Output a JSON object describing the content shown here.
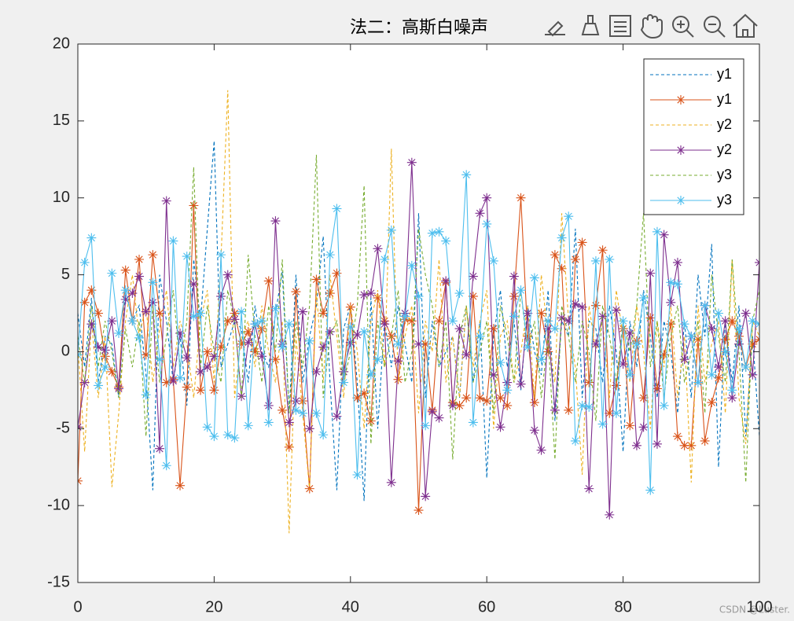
{
  "chart_data": {
    "type": "line",
    "title": "法二：高斯白噪声",
    "watermark": "CSDN @Luster.",
    "x": [
      0,
      1,
      2,
      3,
      4,
      5,
      6,
      7,
      8,
      9,
      10,
      11,
      12,
      13,
      14,
      15,
      16,
      17,
      18,
      19,
      20,
      21,
      22,
      23,
      24,
      25,
      26,
      27,
      28,
      29,
      30,
      31,
      32,
      33,
      34,
      35,
      36,
      37,
      38,
      39,
      40,
      41,
      42,
      43,
      44,
      45,
      46,
      47,
      48,
      49,
      50,
      51,
      52,
      53,
      54,
      55,
      56,
      57,
      58,
      59,
      60,
      61,
      62,
      63,
      64,
      65,
      66,
      67,
      68,
      69,
      70,
      71,
      72,
      73,
      74,
      75,
      76,
      77,
      78,
      79,
      80,
      81,
      82,
      83,
      84,
      85,
      86,
      87,
      88,
      89,
      90,
      91,
      92,
      93,
      94,
      95,
      96,
      97,
      98,
      99,
      100
    ],
    "series": [
      {
        "name": "y1",
        "color": "#0072bd",
        "dashed": true,
        "marker": false,
        "values": [
          2.5,
          -1.0,
          3.5,
          -2.0,
          1.0,
          0.5,
          -3.0,
          4.0,
          2.0,
          3.0,
          -1.5,
          -9.0,
          5.0,
          2.0,
          -2.0,
          1.0,
          -3.5,
          6.0,
          2.0,
          8.0,
          13.7,
          -1.0,
          0.5,
          2.0,
          1.5,
          -2.0,
          3.0,
          0.0,
          -1.0,
          2.5,
          5.2,
          -4.0,
          5.0,
          -2.0,
          1.0,
          3.0,
          7.5,
          -2.0,
          -9.0,
          1.5,
          3.0,
          -2.0,
          -9.7,
          3.5,
          -5.0,
          2.0,
          -1.0,
          3.0,
          0.5,
          -2.0,
          9.0,
          -3.0,
          2.0,
          -1.0,
          0.0,
          1.0,
          -3.0,
          3.0,
          -2.0,
          2.0,
          -8.2,
          1.0,
          4.0,
          -1.0,
          2.0,
          -2.5,
          3.0,
          0.0,
          -1.5,
          4.0,
          -4.5,
          2.0,
          1.0,
          8.0,
          -3.0,
          2.0,
          1.5,
          -2.0,
          3.0,
          0.0,
          -6.5,
          2.0,
          -1.0,
          4.0,
          1.0,
          -3.0,
          2.0,
          0.0,
          -4.0,
          2.0,
          -3.0,
          5.0,
          1.0,
          7.0,
          -7.5,
          2.0,
          -2.0,
          3.0,
          -5.5,
          1.0,
          -5.5
        ]
      },
      {
        "name": "y1",
        "color": "#d95319",
        "dashed": false,
        "marker": true,
        "values": [
          -8.4,
          3.2,
          4.0,
          2.5,
          -0.3,
          -1.3,
          -2.3,
          5.3,
          2.0,
          6.0,
          -0.2,
          6.3,
          2.5,
          -2.0,
          -1.8,
          -8.7,
          -2.3,
          9.5,
          -2.5,
          0.0,
          -2.5,
          0.3,
          2.0,
          2.5,
          0.5,
          1.3,
          0.0,
          1.5,
          4.6,
          -0.5,
          -3.8,
          -6.2,
          3.9,
          -3.2,
          -8.9,
          4.7,
          2.5,
          3.8,
          5.1,
          -1.3,
          2.9,
          -3.0,
          -2.7,
          -4.5,
          3.5,
          2.0,
          1.0,
          -1.8,
          2.1,
          2.0,
          -10.3,
          0.5,
          -3.8,
          2.0,
          4.5,
          -3.3,
          -3.5,
          -3.0,
          3.6,
          -3.0,
          -3.2,
          1.5,
          -3.0,
          -3.5,
          3.6,
          10.0,
          1.0,
          -3.3,
          2.5,
          0.0,
          6.3,
          5.4,
          -3.8,
          6.0,
          7.1,
          -2.0,
          3.0,
          6.6,
          -4.0,
          -2.2,
          1.5,
          -4.8,
          0.7,
          -3.0,
          2.2,
          -2.4,
          -0.2,
          1.8,
          -5.5,
          -6.1,
          -6.1,
          0.8,
          -5.8,
          -3.3,
          -1.7,
          0.8,
          2.0,
          1.0,
          -1.0,
          0.5,
          0.8
        ]
      },
      {
        "name": "y2",
        "color": "#edb120",
        "dashed": true,
        "marker": false,
        "values": [
          0.5,
          -6.5,
          2.0,
          -3.0,
          1.0,
          -8.8,
          -4.0,
          2.0,
          5.0,
          1.0,
          3.0,
          -2.0,
          1.5,
          4.0,
          -1.0,
          2.0,
          0.5,
          -3.0,
          2.0,
          4.0,
          -2.0,
          6.0,
          17.0,
          -3.0,
          1.0,
          2.0,
          -1.0,
          3.0,
          0.0,
          -2.0,
          2.0,
          -11.8,
          1.0,
          -4.0,
          -9.0,
          4.0,
          -2.0,
          5.0,
          1.0,
          -3.0,
          3.0,
          0.0,
          -5.0,
          2.0,
          4.0,
          -1.0,
          13.2,
          -2.0,
          1.0,
          3.0,
          -4.0,
          2.0,
          0.0,
          6.0,
          -2.0,
          1.0,
          -3.0,
          3.0,
          -1.0,
          2.0,
          4.0,
          -5.0,
          1.0,
          2.0,
          -2.0,
          0.0,
          3.0,
          -3.0,
          5.0,
          1.0,
          -2.0,
          9.0,
          2.0,
          -1.0,
          -8.0,
          3.0,
          0.0,
          2.0,
          -3.0,
          4.0,
          1.0,
          -2.0,
          3.0,
          0.0,
          -5.0,
          2.0,
          -1.0,
          3.0,
          -3.0,
          1.0,
          -8.5,
          3.0,
          -2.0,
          0.5,
          2.0,
          -4.0,
          6.0,
          -3.0,
          -6.0,
          2.0,
          1.0
        ]
      },
      {
        "name": "y2",
        "color": "#7e2f8e",
        "dashed": false,
        "marker": true,
        "values": [
          -4.9,
          -2.0,
          1.8,
          0.3,
          0.1,
          2.0,
          -2.4,
          3.4,
          3.8,
          4.9,
          2.6,
          3.2,
          -6.3,
          9.8,
          -1.9,
          1.2,
          -0.4,
          4.4,
          -1.3,
          -1.0,
          -0.3,
          3.6,
          5.0,
          2.1,
          -2.9,
          0.6,
          1.8,
          -0.3,
          -3.5,
          8.5,
          0.5,
          -4.6,
          -3.2,
          2.6,
          -5.0,
          -1.3,
          0.3,
          1.3,
          -4.2,
          -1.3,
          0.6,
          1.1,
          3.7,
          3.8,
          6.7,
          1.8,
          -8.5,
          -0.6,
          2.5,
          12.3,
          0.5,
          -9.4,
          -3.9,
          -4.3,
          4.6,
          -3.5,
          1.5,
          -0.2,
          4.9,
          9.0,
          10.0,
          -1.5,
          -4.9,
          -2.0,
          4.9,
          -2.1,
          2.5,
          -5.1,
          -6.4,
          1.5,
          -3.8,
          2.2,
          2.0,
          3.1,
          2.9,
          -8.9,
          0.5,
          2.3,
          -10.6,
          2.7,
          -0.8,
          1.2,
          -6.1,
          -4.9,
          5.1,
          -6.0,
          7.6,
          3.2,
          5.8,
          -0.5,
          1.0,
          -2.0,
          3.0,
          1.5,
          -1.0,
          2.0,
          -3.0,
          0.5,
          2.5,
          -1.5,
          5.8
        ]
      },
      {
        "name": "y3",
        "color": "#77ac30",
        "dashed": true,
        "marker": false,
        "values": [
          1.0,
          -2.0,
          3.0,
          -1.0,
          2.0,
          0.0,
          -3.0,
          1.5,
          -1.0,
          2.0,
          -5.5,
          3.0,
          -2.0,
          1.0,
          4.0,
          -1.0,
          2.0,
          12.0,
          -1.0,
          3.0,
          0.0,
          -2.0,
          4.0,
          2.0,
          -3.0,
          6.3,
          1.0,
          -2.0,
          3.0,
          0.0,
          6.0,
          -4.0,
          2.0,
          -1.0,
          3.0,
          12.8,
          -3.0,
          1.0,
          2.0,
          -2.0,
          0.0,
          3.0,
          10.8,
          -6.0,
          2.0,
          -1.0,
          1.0,
          4.0,
          -2.0,
          0.0,
          8.0,
          5.0,
          3.0,
          -1.0,
          2.0,
          -7.0,
          1.0,
          3.0,
          -2.0,
          0.0,
          2.0,
          -4.0,
          3.0,
          1.0,
          -2.0,
          4.0,
          0.0,
          2.0,
          -3.0,
          1.0,
          -7.0,
          3.0,
          1.0,
          -2.0,
          2.0,
          0.0,
          -4.5,
          3.0,
          1.0,
          -2.0,
          2.0,
          0.0,
          3.0,
          9.0,
          -1.0,
          2.0,
          -3.0,
          1.0,
          3.0,
          -2.0,
          0.0,
          2.0,
          -4.0,
          5.0,
          1.0,
          -2.0,
          6.0,
          0.0,
          -8.5,
          2.0,
          4.0
        ]
      },
      {
        "name": "y3",
        "color": "#4dbeee",
        "dashed": false,
        "marker": true,
        "values": [
          -0.2,
          5.8,
          7.4,
          -2.2,
          -1.0,
          5.1,
          1.2,
          4.0,
          2.0,
          0.9,
          -2.8,
          4.5,
          -0.5,
          -7.4,
          7.2,
          -1.7,
          6.2,
          2.3,
          2.5,
          -4.9,
          -5.5,
          6.3,
          -5.4,
          -5.6,
          2.6,
          -4.8,
          1.8,
          2.0,
          -4.6,
          2.8,
          0.3,
          1.8,
          -3.8,
          -4.0,
          0.7,
          -4.0,
          -5.4,
          6.3,
          9.3,
          -2.0,
          1.6,
          -8.0,
          1.3,
          -1.5,
          -0.5,
          6.0,
          7.9,
          0.5,
          2.3,
          5.6,
          3.6,
          -4.8,
          7.7,
          7.8,
          7.2,
          2.0,
          3.8,
          11.5,
          -4.6,
          1.0,
          8.3,
          5.9,
          -0.7,
          -2.5,
          2.3,
          4.0,
          0.3,
          4.8,
          -0.5,
          2.0,
          1.5,
          7.4,
          8.8,
          -5.8,
          -3.5,
          -3.6,
          5.9,
          -4.7,
          6.0,
          -4.0,
          2.0,
          -1.5,
          0.5,
          3.5,
          -9.0,
          7.8,
          -3.5,
          4.5,
          4.4,
          1.8,
          1.0,
          -2.0,
          3.0,
          -1.5,
          2.5,
          0.0,
          -2.5,
          1.5,
          -1.0,
          2.0,
          1.8
        ]
      }
    ],
    "xlim": [
      0,
      100
    ],
    "xticks": [
      0,
      20,
      40,
      60,
      80,
      100
    ],
    "ylim": [
      -15,
      20
    ],
    "yticks": [
      -15,
      -10,
      -5,
      0,
      5,
      10,
      15,
      20
    ],
    "grid": false,
    "legend": "northeast"
  }
}
